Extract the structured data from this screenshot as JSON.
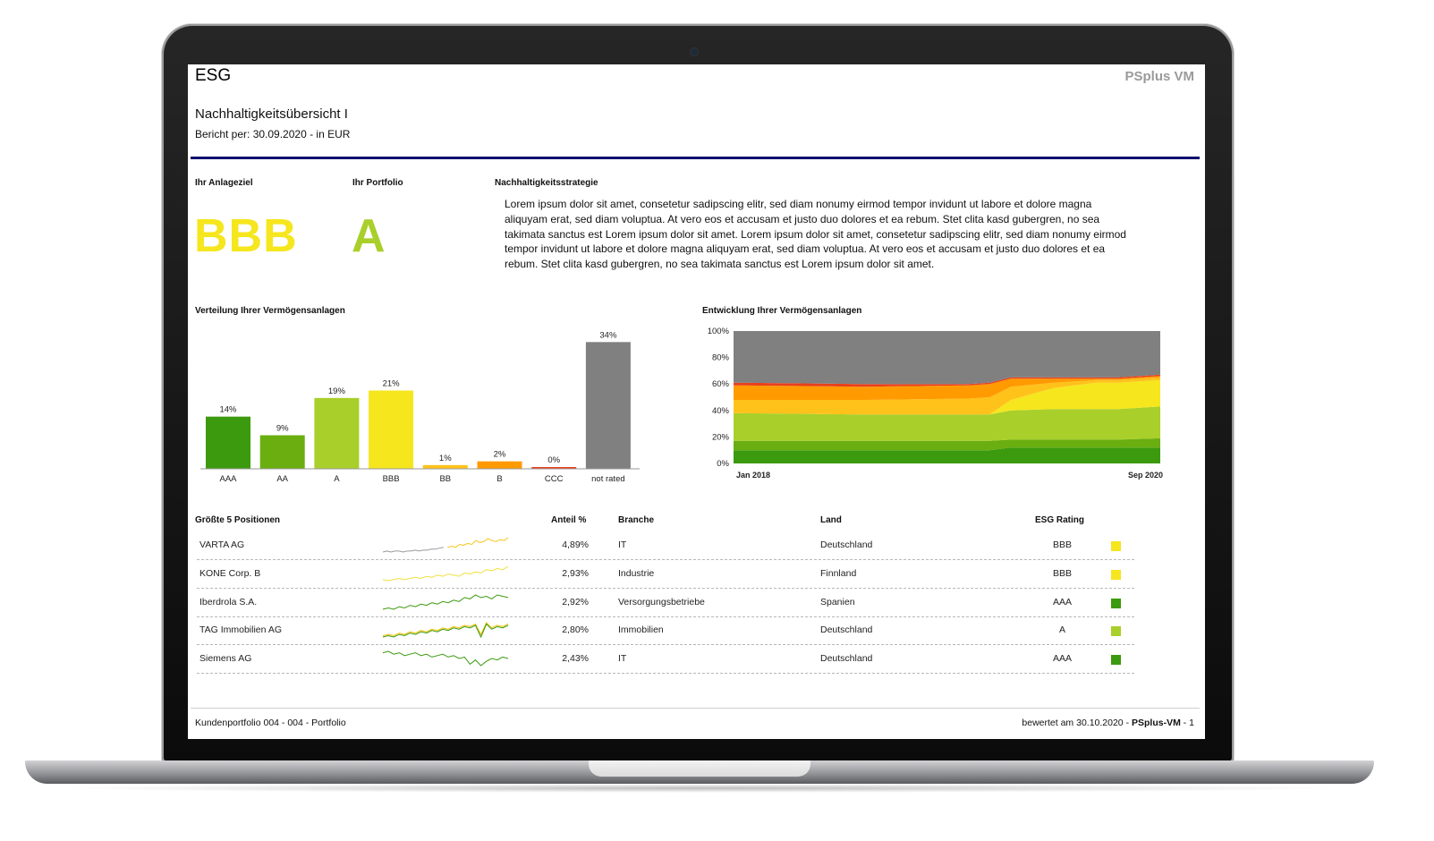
{
  "header": {
    "section": "ESG",
    "brand": "PSplus VM",
    "title": "Nachhaltigkeitsübersicht I",
    "subtitle": "Bericht per: 30.09.2020 - in EUR"
  },
  "summary": {
    "goal_label": "Ihr Anlageziel",
    "goal_value": "BBB",
    "goal_color": "#f5e61e",
    "portfolio_label": "Ihr Portfolio",
    "portfolio_value": "A",
    "portfolio_color": "#a9cf2a",
    "strategy_label": "Nachhaltigkeitsstrategie",
    "strategy_text": "Lorem ipsum dolor sit amet, consetetur sadipscing elitr, sed diam nonumy eirmod tempor invidunt ut labore et dolore magna aliquyam erat, sed diam voluptua. At vero eos et accusam et justo duo dolores et ea rebum. Stet clita kasd gubergren, no sea takimata sanctus est Lorem ipsum dolor sit amet. Lorem ipsum dolor sit amet, consetetur sadipscing elitr, sed diam nonumy eirmod tempor invidunt ut labore et dolore magna aliquyam erat, sed diam voluptua. At vero eos et accusam et justo duo dolores et ea rebum. Stet clita kasd gubergren, no sea takimata sanctus est Lorem ipsum dolor sit amet."
  },
  "chart_data": [
    {
      "type": "bar",
      "title": "Verteilung Ihrer Vermögensanlagen",
      "categories": [
        "AAA",
        "AA",
        "A",
        "BBB",
        "BB",
        "B",
        "CCC",
        "not rated"
      ],
      "values": [
        14,
        9,
        19,
        21,
        1,
        2,
        0,
        34
      ],
      "value_labels": [
        "14%",
        "9%",
        "19%",
        "21%",
        "1%",
        "2%",
        "0%",
        "34%"
      ],
      "colors": [
        "#3c9a0e",
        "#6aae10",
        "#a9cf2a",
        "#f5e61e",
        "#ffc21a",
        "#ff9a00",
        "#e8401c",
        "#808080"
      ],
      "ylim": [
        0,
        36
      ]
    },
    {
      "type": "area",
      "title": "Entwicklung Ihrer Vermögensanlagen",
      "x_labels": [
        "Jan 2018",
        "Sep 2020"
      ],
      "y_ticks": [
        "0%",
        "20%",
        "40%",
        "60%",
        "80%",
        "100%"
      ],
      "ylim": [
        0,
        100
      ],
      "stacked": true,
      "x": [
        0,
        0.3,
        0.31,
        0.55,
        0.6,
        0.65,
        0.75,
        0.85,
        0.9,
        1.0
      ],
      "series": [
        {
          "color": "#3c9a0e",
          "values": [
            10,
            10,
            10,
            10,
            10,
            12,
            12,
            12,
            12,
            12
          ]
        },
        {
          "color": "#6aae10",
          "values": [
            7,
            7,
            7,
            7,
            7,
            6,
            6,
            6,
            6,
            7
          ]
        },
        {
          "color": "#a9cf2a",
          "values": [
            21,
            20,
            20,
            20,
            20,
            22,
            23,
            23,
            23,
            24
          ]
        },
        {
          "color": "#f5e61e",
          "values": [
            0,
            0,
            0,
            0,
            0,
            8,
            16,
            20,
            20,
            20
          ]
        },
        {
          "color": "#ffc21a",
          "values": [
            10,
            11,
            11,
            12,
            13,
            10,
            4,
            2,
            2,
            2
          ]
        },
        {
          "color": "#ff9a00",
          "values": [
            11,
            10,
            10,
            10,
            10,
            6,
            3,
            1,
            1,
            1
          ]
        },
        {
          "color": "#e8401c",
          "values": [
            2,
            2,
            2,
            1,
            1,
            1,
            1,
            1,
            1,
            1
          ]
        },
        {
          "color": "#808080",
          "values": [
            39,
            40,
            40,
            40,
            39,
            35,
            35,
            35,
            35,
            33
          ]
        }
      ]
    }
  ],
  "positions": {
    "title": "Größte 5 Positionen",
    "headers": {
      "share": "Anteil %",
      "sector": "Branche",
      "country": "Land",
      "rating": "ESG Rating"
    },
    "rows": [
      {
        "name": "VARTA AG",
        "share": "4,89%",
        "sector": "IT",
        "country": "Deutschland",
        "rating": "BBB",
        "color": "#f5e61e",
        "spark": [
          {
            "color": "#9a9a9a",
            "v": [
              0,
              1,
              0,
              1,
              1,
              0,
              1,
              1,
              2,
              1,
              2,
              2,
              3,
              3,
              4,
              5
            ]
          },
          {
            "color": "#f5c518",
            "v": [
              5,
              6,
              5,
              8,
              7,
              9,
              8,
              12,
              10,
              11,
              14,
              12,
              11,
              13,
              12,
              15
            ]
          }
        ]
      },
      {
        "name": "KONE Corp. B",
        "share": "2,93%",
        "sector": "Industrie",
        "country": "Finnland",
        "rating": "BBB",
        "color": "#f5e61e",
        "spark": [
          {
            "color": "#f0e040",
            "v": [
              2,
              1,
              2,
              3,
              2,
              3,
              4,
              3,
              5,
              4,
              6,
              5,
              7,
              6,
              5,
              8,
              7,
              9,
              8,
              11,
              10,
              12,
              11,
              14
            ]
          }
        ]
      },
      {
        "name": "Iberdrola S.A.",
        "share": "2,92%",
        "sector": "Versorgungsbetriebe",
        "country": "Spanien",
        "rating": "AAA",
        "color": "#3c9a0e",
        "spark": [
          {
            "color": "#3c9a0e",
            "v": [
              1,
              2,
              1,
              3,
              2,
              4,
              3,
              5,
              4,
              6,
              5,
              7,
              6,
              8,
              7,
              10,
              9,
              12,
              10,
              11,
              9,
              12,
              11,
              10
            ]
          }
        ]
      },
      {
        "name": "TAG Immobilien AG",
        "share": "2,80%",
        "sector": "Immobilien",
        "country": "Deutschland",
        "rating": "A",
        "color": "#a9cf2a",
        "spark": [
          {
            "color": "#f0c000",
            "v": [
              3,
              4,
              3,
              5,
              4,
              6,
              5,
              7,
              6,
              8,
              7,
              9,
              8,
              10,
              9,
              11,
              10,
              12,
              4,
              13,
              9,
              11,
              10,
              12
            ]
          },
          {
            "color": "#3c9a0e",
            "v": [
              2,
              3,
              2,
              4,
              3,
              5,
              4,
              6,
              5,
              7,
              6,
              8,
              7,
              9,
              8,
              10,
              9,
              11,
              2,
              12,
              8,
              10,
              9,
              11
            ]
          }
        ]
      },
      {
        "name": "Siemens AG",
        "share": "2,43%",
        "sector": "IT",
        "country": "Deutschland",
        "rating": "AAA",
        "color": "#3c9a0e",
        "spark": [
          {
            "color": "#3c9a0e",
            "v": [
              10,
              11,
              9,
              10,
              8,
              9,
              10,
              8,
              9,
              7,
              8,
              9,
              7,
              8,
              6,
              7,
              2,
              5,
              1,
              4,
              6,
              5,
              7,
              6
            ]
          }
        ]
      }
    ]
  },
  "footer": {
    "left": "Kundenportfolio 004 - 004 - Portfolio",
    "right_prefix": "bewertet am 30.10.2020 - ",
    "right_brand": "PSplus-VM",
    "right_suffix": " - 1"
  }
}
